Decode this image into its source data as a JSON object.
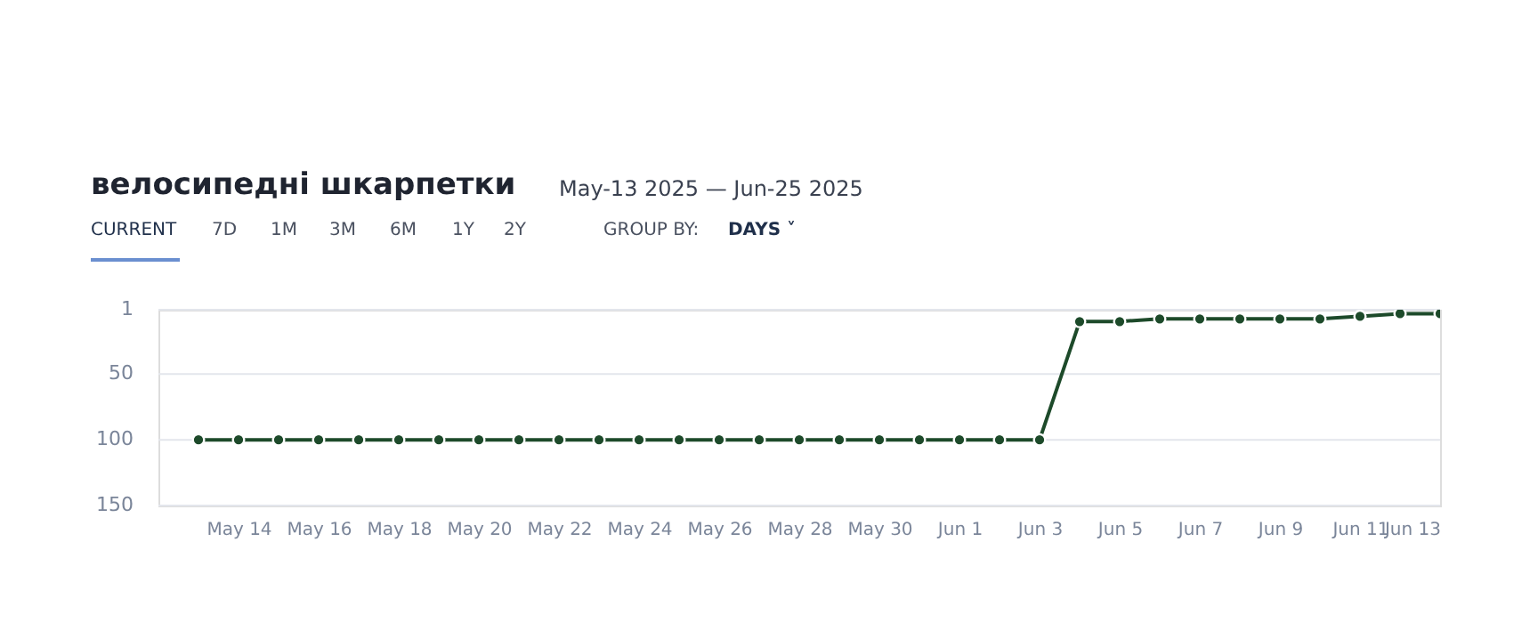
{
  "chart_data": {
    "type": "line",
    "title": "велосипедні шкарпетки",
    "subtitle": "May-13 2025 — Jun-25 2025",
    "annotations": [
      "CURRENT",
      "7D",
      "1M",
      "3M",
      "6M",
      "1Y",
      "2Y",
      "GROUP BY:",
      "DAYS ˅"
    ],
    "x": [
      "2025-05-13",
      "2025-05-14",
      "2025-05-15",
      "2025-05-16",
      "2025-05-17",
      "2025-05-18",
      "2025-05-19",
      "2025-05-20",
      "2025-05-21",
      "2025-05-22",
      "2025-05-23",
      "2025-05-24",
      "2025-05-25",
      "2025-05-26",
      "2025-05-27",
      "2025-05-28",
      "2025-05-29",
      "2025-05-30",
      "2025-05-31",
      "2025-06-01",
      "2025-06-02",
      "2025-06-03",
      "2025-06-04",
      "2025-06-05",
      "2025-06-06",
      "2025-06-07",
      "2025-06-08",
      "2025-06-09",
      "2025-06-10",
      "2025-06-11",
      "2025-06-12",
      "2025-06-13"
    ],
    "series": [
      {
        "color": "#1d4a2a",
        "values": [
          100,
          100,
          100,
          100,
          100,
          100,
          100,
          100,
          100,
          100,
          100,
          100,
          100,
          100,
          100,
          100,
          100,
          100,
          100,
          100,
          100,
          100,
          10,
          10,
          8,
          8,
          8,
          8,
          8,
          6,
          4,
          4
        ]
      }
    ],
    "xlim": [
      "2025-05-12",
      "2025-06-13"
    ],
    "xticks": [
      {
        "value": "2025-05-14",
        "label": "May 14"
      },
      {
        "value": "2025-05-16",
        "label": "May 16"
      },
      {
        "value": "2025-05-18",
        "label": "May 18"
      },
      {
        "value": "2025-05-20",
        "label": "May 20"
      },
      {
        "value": "2025-05-22",
        "label": "May 22"
      },
      {
        "value": "2025-05-24",
        "label": "May 24"
      },
      {
        "value": "2025-05-26",
        "label": "May 26"
      },
      {
        "value": "2025-05-28",
        "label": "May 28"
      },
      {
        "value": "2025-05-30",
        "label": "May 30"
      },
      {
        "value": "2025-06-01",
        "label": "Jun 1"
      },
      {
        "value": "2025-06-03",
        "label": "Jun 3"
      },
      {
        "value": "2025-06-05",
        "label": "Jun 5"
      },
      {
        "value": "2025-06-07",
        "label": "Jun 7"
      },
      {
        "value": "2025-06-09",
        "label": "Jun 9"
      },
      {
        "value": "2025-06-11",
        "label": "Jun 11"
      },
      {
        "value": "2025-06-13",
        "label": "Jun 13"
      }
    ],
    "ylim": [
      150,
      1
    ],
    "yticks": [
      1,
      50,
      100,
      150
    ],
    "grid": "y",
    "marker": "circle",
    "line_style": "solid"
  }
}
